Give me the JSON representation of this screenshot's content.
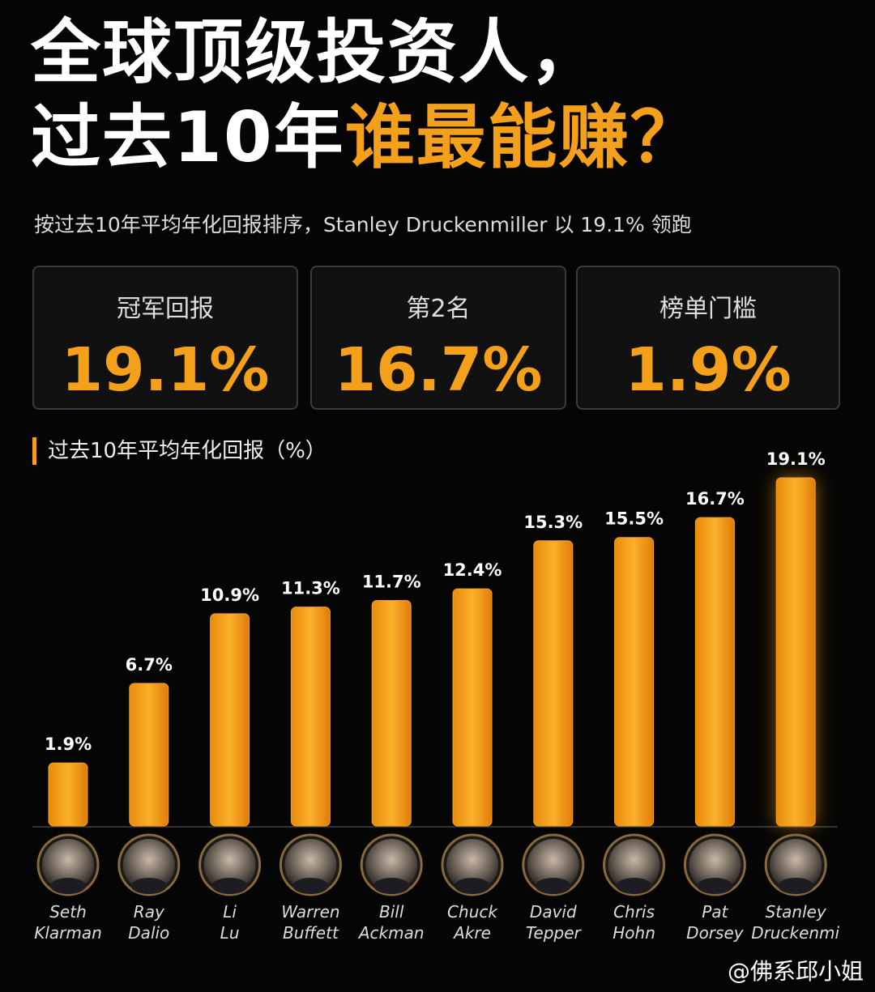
{
  "header": {
    "title_line1": "全球顶级投资人，",
    "title_line2": "过去10年",
    "title_highlight": "谁最能赚？",
    "subtitle": "按过去10年平均年化回报排序，Stanley Druckenmiller 以 19.1% 领跑"
  },
  "cards": [
    {
      "label": "冠军回报",
      "value": "19.1%"
    },
    {
      "label": "第2名",
      "value": "16.7%"
    },
    {
      "label": "榜单门槛",
      "value": "1.9%"
    }
  ],
  "chart_data": {
    "type": "bar",
    "title": "过去10年平均年化回报（%）",
    "categories": [
      "Seth Klarman",
      "Ray Dalio",
      "Li Lu",
      "Warren Buffett",
      "Bill Ackman",
      "Chuck Akre",
      "David Tepper",
      "Chris Hohn",
      "Pat Dorsey",
      "Stanley Druckenmiller"
    ],
    "values": [
      1.9,
      6.7,
      10.9,
      11.3,
      11.7,
      12.4,
      15.3,
      15.5,
      16.7,
      19.1
    ],
    "value_labels": [
      "1.9%",
      "6.7%",
      "10.9%",
      "11.3%",
      "11.7%",
      "12.4%",
      "15.3%",
      "15.5%",
      "16.7%",
      "19.1%"
    ],
    "color": "#f5a01a"
  },
  "watermark": "@佛系邱小姐"
}
